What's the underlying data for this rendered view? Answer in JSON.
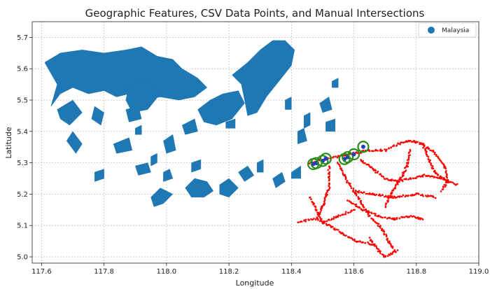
{
  "chart_data": {
    "type": "scatter",
    "title": "Geographic Features, CSV Data Points, and Manual Intersections",
    "xlabel": "Longitude",
    "ylabel": "Latitude",
    "xlim": [
      117.57,
      119.0
    ],
    "ylim": [
      4.98,
      5.75
    ],
    "xticks": [
      "117.6",
      "117.8",
      "118.0",
      "118.2",
      "118.4",
      "118.6",
      "118.8",
      "119.0"
    ],
    "yticks": [
      "5.0",
      "5.1",
      "5.2",
      "5.3",
      "5.4",
      "5.5",
      "5.6",
      "5.7"
    ],
    "grid": true,
    "legend_position": "top-right",
    "colors": {
      "polygon": "#1f77b4",
      "csv_points": "#ff0000",
      "intersection_fill": "#1f3fbf",
      "intersection_ring": "#2a8a1a"
    },
    "series": [
      {
        "name": "Malaysia",
        "kind": "polygons",
        "polygons": [
          [
            [
              117.61,
              5.62
            ],
            [
              117.66,
              5.65
            ],
            [
              117.73,
              5.66
            ],
            [
              117.8,
              5.65
            ],
            [
              117.87,
              5.66
            ],
            [
              117.92,
              5.67
            ],
            [
              117.97,
              5.64
            ],
            [
              118.02,
              5.63
            ],
            [
              118.05,
              5.6
            ],
            [
              118.1,
              5.57
            ],
            [
              118.13,
              5.54
            ],
            [
              118.09,
              5.51
            ],
            [
              118.04,
              5.5
            ],
            [
              117.98,
              5.51
            ],
            [
              117.93,
              5.5
            ],
            [
              117.88,
              5.52
            ],
            [
              117.84,
              5.51
            ],
            [
              117.8,
              5.53
            ],
            [
              117.75,
              5.52
            ],
            [
              117.7,
              5.54
            ],
            [
              117.66,
              5.52
            ],
            [
              117.63,
              5.48
            ],
            [
              117.65,
              5.55
            ]
          ],
          [
            [
              118.1,
              5.47
            ],
            [
              118.14,
              5.5
            ],
            [
              118.18,
              5.52
            ],
            [
              118.23,
              5.53
            ],
            [
              118.25,
              5.49
            ],
            [
              118.21,
              5.44
            ],
            [
              118.16,
              5.42
            ],
            [
              118.12,
              5.43
            ]
          ],
          [
            [
              117.88,
              5.55
            ],
            [
              117.95,
              5.56
            ],
            [
              117.98,
              5.52
            ],
            [
              117.94,
              5.47
            ],
            [
              117.89,
              5.46
            ],
            [
              117.87,
              5.5
            ]
          ],
          [
            [
              118.21,
              5.58
            ],
            [
              118.26,
              5.62
            ],
            [
              118.3,
              5.66
            ],
            [
              118.34,
              5.69
            ],
            [
              118.38,
              5.69
            ],
            [
              118.41,
              5.66
            ],
            [
              118.4,
              5.61
            ],
            [
              118.36,
              5.56
            ],
            [
              118.32,
              5.51
            ],
            [
              118.29,
              5.46
            ],
            [
              118.26,
              5.45
            ],
            [
              118.25,
              5.5
            ],
            [
              118.24,
              5.55
            ]
          ],
          [
            [
              117.65,
              5.47
            ],
            [
              117.7,
              5.5
            ],
            [
              117.73,
              5.46
            ],
            [
              117.69,
              5.42
            ],
            [
              117.66,
              5.44
            ]
          ],
          [
            [
              117.7,
              5.4
            ],
            [
              117.73,
              5.36
            ],
            [
              117.71,
              5.33
            ],
            [
              117.68,
              5.37
            ]
          ],
          [
            [
              117.77,
              5.48
            ],
            [
              117.8,
              5.46
            ],
            [
              117.79,
              5.42
            ],
            [
              117.76,
              5.44
            ]
          ],
          [
            [
              117.83,
              5.36
            ],
            [
              117.88,
              5.38
            ],
            [
              117.89,
              5.34
            ],
            [
              117.84,
              5.33
            ]
          ],
          [
            [
              117.87,
              5.47
            ],
            [
              117.91,
              5.48
            ],
            [
              117.92,
              5.44
            ],
            [
              117.88,
              5.43
            ]
          ],
          [
            [
              117.99,
              5.37
            ],
            [
              118.02,
              5.39
            ],
            [
              118.03,
              5.34
            ],
            [
              118.0,
              5.33
            ]
          ],
          [
            [
              118.05,
              5.42
            ],
            [
              118.09,
              5.44
            ],
            [
              118.1,
              5.4
            ],
            [
              118.06,
              5.39
            ]
          ],
          [
            [
              117.77,
              5.27
            ],
            [
              117.8,
              5.28
            ],
            [
              117.8,
              5.25
            ],
            [
              117.77,
              5.24
            ]
          ],
          [
            [
              117.9,
              5.29
            ],
            [
              117.94,
              5.3
            ],
            [
              117.95,
              5.27
            ],
            [
              117.91,
              5.26
            ]
          ],
          [
            [
              117.95,
              5.32
            ],
            [
              117.97,
              5.33
            ],
            [
              117.97,
              5.3
            ],
            [
              117.95,
              5.29
            ]
          ],
          [
            [
              117.99,
              5.27
            ],
            [
              118.01,
              5.28
            ],
            [
              118.02,
              5.25
            ],
            [
              117.99,
              5.24
            ]
          ],
          [
            [
              118.08,
              5.3
            ],
            [
              118.11,
              5.31
            ],
            [
              118.11,
              5.28
            ],
            [
              118.08,
              5.27
            ]
          ],
          [
            [
              118.06,
              5.22
            ],
            [
              118.09,
              5.25
            ],
            [
              118.13,
              5.24
            ],
            [
              118.15,
              5.21
            ],
            [
              118.12,
              5.19
            ],
            [
              118.08,
              5.19
            ]
          ],
          [
            [
              117.95,
              5.19
            ],
            [
              117.98,
              5.22
            ],
            [
              118.02,
              5.2
            ],
            [
              117.99,
              5.17
            ],
            [
              117.96,
              5.16
            ]
          ],
          [
            [
              118.17,
              5.23
            ],
            [
              118.2,
              5.25
            ],
            [
              118.23,
              5.22
            ],
            [
              118.2,
              5.19
            ],
            [
              118.17,
              5.2
            ]
          ],
          [
            [
              118.23,
              5.27
            ],
            [
              118.26,
              5.29
            ],
            [
              118.28,
              5.26
            ],
            [
              118.25,
              5.24
            ]
          ],
          [
            [
              118.29,
              5.3
            ],
            [
              118.31,
              5.31
            ],
            [
              118.31,
              5.27
            ],
            [
              118.29,
              5.27
            ]
          ],
          [
            [
              118.34,
              5.25
            ],
            [
              118.37,
              5.27
            ],
            [
              118.38,
              5.24
            ],
            [
              118.35,
              5.22
            ]
          ],
          [
            [
              118.4,
              5.27
            ],
            [
              118.43,
              5.29
            ],
            [
              118.43,
              5.25
            ],
            [
              118.4,
              5.25
            ]
          ],
          [
            [
              118.42,
              5.4
            ],
            [
              118.44,
              5.41
            ],
            [
              118.45,
              5.37
            ],
            [
              118.42,
              5.36
            ]
          ],
          [
            [
              118.44,
              5.45
            ],
            [
              118.46,
              5.46
            ],
            [
              118.46,
              5.42
            ],
            [
              118.44,
              5.41
            ]
          ],
          [
            [
              118.49,
              5.49
            ],
            [
              118.52,
              5.51
            ],
            [
              118.53,
              5.47
            ],
            [
              118.5,
              5.46
            ]
          ],
          [
            [
              118.51,
              5.43
            ],
            [
              118.54,
              5.44
            ],
            [
              118.54,
              5.4
            ],
            [
              118.51,
              5.4
            ]
          ],
          [
            [
              118.53,
              5.56
            ],
            [
              118.55,
              5.57
            ],
            [
              118.55,
              5.54
            ],
            [
              118.53,
              5.54
            ]
          ],
          [
            [
              118.19,
              5.43
            ],
            [
              118.22,
              5.44
            ],
            [
              118.22,
              5.41
            ],
            [
              118.19,
              5.41
            ]
          ],
          [
            [
              118.38,
              5.5
            ],
            [
              118.4,
              5.51
            ],
            [
              118.4,
              5.47
            ],
            [
              118.38,
              5.47
            ]
          ],
          [
            [
              117.9,
              5.41
            ],
            [
              117.92,
              5.42
            ],
            [
              117.92,
              5.39
            ],
            [
              117.9,
              5.39
            ]
          ]
        ]
      },
      {
        "name": "",
        "kind": "csv_points",
        "paths": [
          [
            [
              118.46,
              5.3
            ],
            [
              118.5,
              5.31
            ],
            [
              118.55,
              5.32
            ],
            [
              118.6,
              5.33
            ],
            [
              118.65,
              5.34
            ],
            [
              118.7,
              5.34
            ],
            [
              118.74,
              5.36
            ],
            [
              118.78,
              5.37
            ],
            [
              118.82,
              5.36
            ],
            [
              118.86,
              5.33
            ],
            [
              118.89,
              5.29
            ],
            [
              118.9,
              5.24
            ],
            [
              118.88,
              5.21
            ]
          ],
          [
            [
              118.62,
              5.31
            ],
            [
              118.66,
              5.28
            ],
            [
              118.7,
              5.25
            ],
            [
              118.74,
              5.24
            ],
            [
              118.78,
              5.25
            ],
            [
              118.83,
              5.26
            ],
            [
              118.88,
              5.25
            ],
            [
              118.93,
              5.23
            ]
          ],
          [
            [
              118.52,
              5.29
            ],
            [
              118.52,
              5.22
            ],
            [
              118.5,
              5.16
            ],
            [
              118.48,
              5.12
            ],
            [
              118.52,
              5.1
            ],
            [
              118.57,
              5.07
            ],
            [
              118.61,
              5.05
            ],
            [
              118.66,
              5.04
            ]
          ],
          [
            [
              118.55,
              5.3
            ],
            [
              118.58,
              5.24
            ],
            [
              118.62,
              5.18
            ],
            [
              118.65,
              5.13
            ],
            [
              118.69,
              5.09
            ],
            [
              118.71,
              5.05
            ],
            [
              118.73,
              5.02
            ]
          ],
          [
            [
              118.6,
              5.21
            ],
            [
              118.66,
              5.2
            ],
            [
              118.73,
              5.19
            ],
            [
              118.8,
              5.2
            ],
            [
              118.86,
              5.19
            ]
          ],
          [
            [
              118.58,
              5.18
            ],
            [
              118.63,
              5.15
            ],
            [
              118.68,
              5.13
            ],
            [
              118.73,
              5.12
            ],
            [
              118.78,
              5.13
            ],
            [
              118.82,
              5.12
            ]
          ],
          [
            [
              118.65,
              5.06
            ],
            [
              118.68,
              5.02
            ],
            [
              118.7,
              5.0
            ],
            [
              118.74,
              5.02
            ]
          ],
          [
            [
              118.78,
              5.34
            ],
            [
              118.77,
              5.29
            ],
            [
              118.75,
              5.25
            ],
            [
              118.72,
              5.2
            ],
            [
              118.7,
              5.16
            ]
          ],
          [
            [
              118.82,
              5.36
            ],
            [
              118.84,
              5.31
            ],
            [
              118.86,
              5.27
            ],
            [
              118.9,
              5.24
            ]
          ],
          [
            [
              118.46,
              5.19
            ],
            [
              118.48,
              5.15
            ],
            [
              118.5,
              5.11
            ],
            [
              118.55,
              5.13
            ],
            [
              118.6,
              5.15
            ]
          ],
          [
            [
              118.42,
              5.11
            ],
            [
              118.47,
              5.12
            ]
          ]
        ]
      },
      {
        "name": "",
        "kind": "intersections",
        "points": [
          [
            118.47,
            5.296
          ],
          [
            118.48,
            5.299
          ],
          [
            118.5,
            5.306
          ],
          [
            118.51,
            5.313
          ],
          [
            118.57,
            5.312
          ],
          [
            118.58,
            5.318
          ],
          [
            118.6,
            5.327
          ],
          [
            118.63,
            5.351
          ]
        ]
      }
    ]
  }
}
